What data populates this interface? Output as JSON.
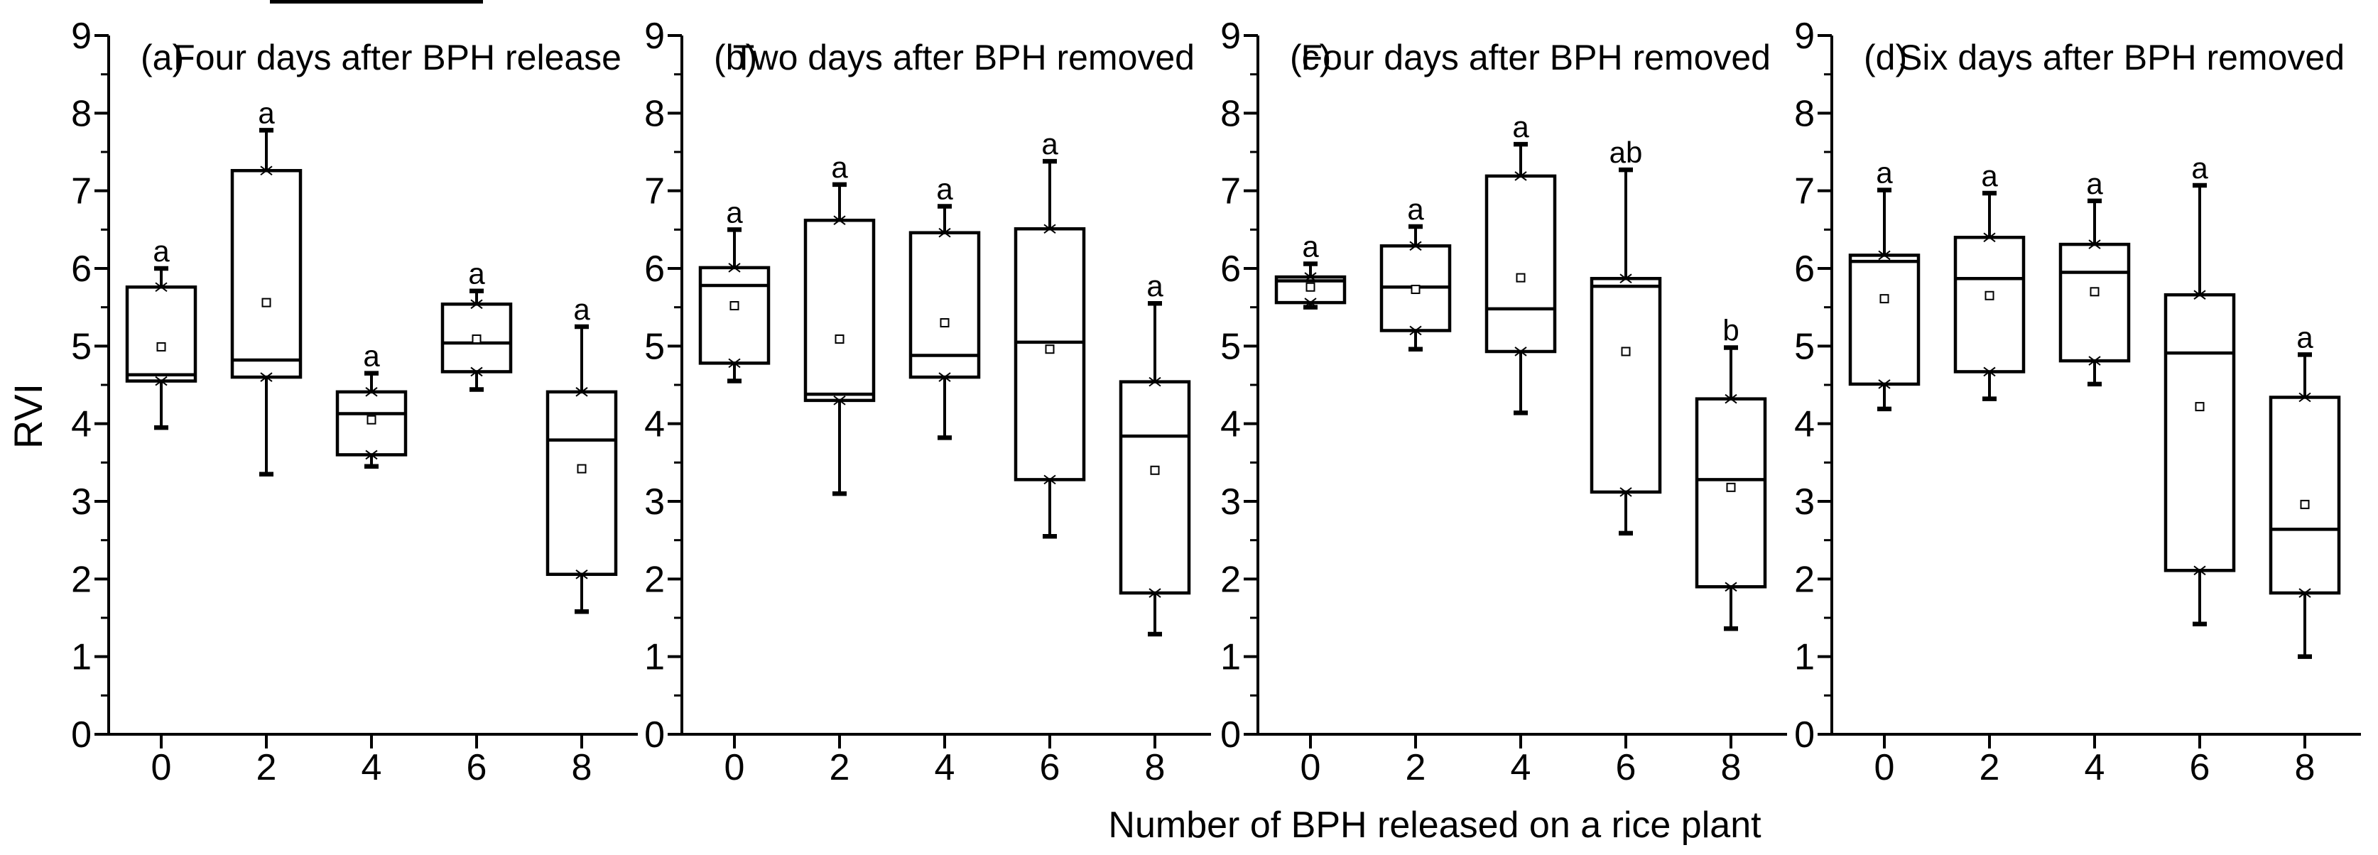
{
  "figure": {
    "background_color": "#ffffff",
    "line_color": "#000000"
  },
  "chart_data": {
    "type": "box",
    "title": "",
    "xlabel": "Number of BPH released on a rice plant",
    "ylabel": "RVI",
    "ylim": [
      0,
      9
    ],
    "ytick_step": 1,
    "yminor_step": 0.5,
    "grid": "off",
    "legend": "none",
    "yticks": [
      "0",
      "1",
      "2",
      "3",
      "4",
      "5",
      "6",
      "7",
      "8",
      "9"
    ],
    "categories": [
      "0",
      "2",
      "4",
      "6",
      "8"
    ],
    "panels": [
      {
        "panel_label": "(a)",
        "title": "Four days after BPH release",
        "boxes": [
          {
            "category": "0",
            "whisker_low": 3.95,
            "q1": 4.55,
            "median": 4.63,
            "q3": 5.76,
            "whisker_high": 6.0,
            "mean": 4.99,
            "letter": "a"
          },
          {
            "category": "2",
            "whisker_low": 3.35,
            "q1": 4.6,
            "median": 4.82,
            "q3": 7.26,
            "whisker_high": 7.78,
            "mean": 5.56,
            "letter": "a"
          },
          {
            "category": "4",
            "whisker_low": 3.45,
            "q1": 3.6,
            "median": 4.13,
            "q3": 4.41,
            "whisker_high": 4.65,
            "mean": 4.05,
            "letter": "a"
          },
          {
            "category": "6",
            "whisker_low": 4.44,
            "q1": 4.67,
            "median": 5.04,
            "q3": 5.54,
            "whisker_high": 5.71,
            "mean": 5.09,
            "letter": "a"
          },
          {
            "category": "8",
            "whisker_low": 1.58,
            "q1": 2.06,
            "median": 3.79,
            "q3": 4.41,
            "whisker_high": 5.25,
            "mean": 3.42,
            "letter": "a"
          }
        ]
      },
      {
        "panel_label": "(b)",
        "title": "Two days after BPH removed",
        "boxes": [
          {
            "category": "0",
            "whisker_low": 4.55,
            "q1": 4.78,
            "median": 5.78,
            "q3": 6.01,
            "whisker_high": 6.5,
            "mean": 5.52,
            "letter": "a"
          },
          {
            "category": "2",
            "whisker_low": 3.1,
            "q1": 4.3,
            "median": 4.38,
            "q3": 6.62,
            "whisker_high": 7.08,
            "mean": 5.09,
            "letter": "a"
          },
          {
            "category": "4",
            "whisker_low": 3.82,
            "q1": 4.6,
            "median": 4.88,
            "q3": 6.46,
            "whisker_high": 6.8,
            "mean": 5.3,
            "letter": "a"
          },
          {
            "category": "6",
            "whisker_low": 2.55,
            "q1": 3.28,
            "median": 5.05,
            "q3": 6.51,
            "whisker_high": 7.38,
            "mean": 4.96,
            "letter": "a"
          },
          {
            "category": "8",
            "whisker_low": 1.29,
            "q1": 1.82,
            "median": 3.84,
            "q3": 4.54,
            "whisker_high": 5.55,
            "mean": 3.4,
            "letter": "a"
          }
        ]
      },
      {
        "panel_label": "(c)",
        "title": "Four days after BPH removed",
        "boxes": [
          {
            "category": "0",
            "whisker_low": 5.5,
            "q1": 5.56,
            "median": 5.84,
            "q3": 5.89,
            "whisker_high": 6.06,
            "mean": 5.76,
            "letter": "a"
          },
          {
            "category": "2",
            "whisker_low": 4.96,
            "q1": 5.2,
            "median": 5.76,
            "q3": 6.29,
            "whisker_high": 6.54,
            "mean": 5.73,
            "letter": "a"
          },
          {
            "category": "4",
            "whisker_low": 4.14,
            "q1": 4.93,
            "median": 5.48,
            "q3": 7.19,
            "whisker_high": 7.6,
            "mean": 5.88,
            "letter": "a"
          },
          {
            "category": "6",
            "whisker_low": 2.59,
            "q1": 3.12,
            "median": 5.77,
            "q3": 5.87,
            "whisker_high": 7.27,
            "mean": 4.93,
            "letter": "ab"
          },
          {
            "category": "8",
            "whisker_low": 1.36,
            "q1": 1.9,
            "median": 3.28,
            "q3": 4.32,
            "whisker_high": 4.98,
            "mean": 3.18,
            "letter": "b"
          }
        ]
      },
      {
        "panel_label": "(d)",
        "title": "Six days after BPH removed",
        "boxes": [
          {
            "category": "0",
            "whisker_low": 4.19,
            "q1": 4.51,
            "median": 6.09,
            "q3": 6.17,
            "whisker_high": 7.01,
            "mean": 5.61,
            "letter": "a"
          },
          {
            "category": "2",
            "whisker_low": 4.32,
            "q1": 4.67,
            "median": 5.87,
            "q3": 6.4,
            "whisker_high": 6.97,
            "mean": 5.65,
            "letter": "a"
          },
          {
            "category": "4",
            "whisker_low": 4.51,
            "q1": 4.81,
            "median": 5.95,
            "q3": 6.31,
            "whisker_high": 6.87,
            "mean": 5.7,
            "letter": "a"
          },
          {
            "category": "6",
            "whisker_low": 1.42,
            "q1": 2.11,
            "median": 4.91,
            "q3": 5.66,
            "whisker_high": 7.07,
            "mean": 4.22,
            "letter": "a"
          },
          {
            "category": "8",
            "whisker_low": 1.0,
            "q1": 1.82,
            "median": 2.64,
            "q3": 4.34,
            "whisker_high": 4.89,
            "mean": 2.96,
            "letter": "a"
          }
        ]
      }
    ]
  }
}
